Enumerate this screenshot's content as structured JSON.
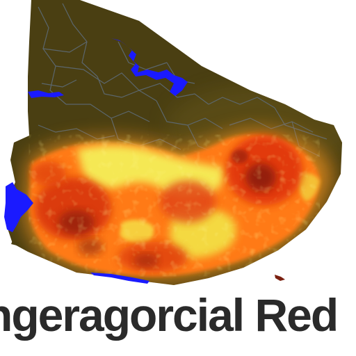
{
  "colors": {
    "land": "#4a3f12",
    "border": "#5f6e7e",
    "water": "#1a1aff",
    "heat_low": "#f5f25a",
    "heat_mid": "#ff8c1a",
    "heat_high": "#e0350f",
    "heat_core": "#7a1508",
    "text": "#2a2a2a"
  },
  "caption": {
    "text": "ngeragorcial Red"
  }
}
